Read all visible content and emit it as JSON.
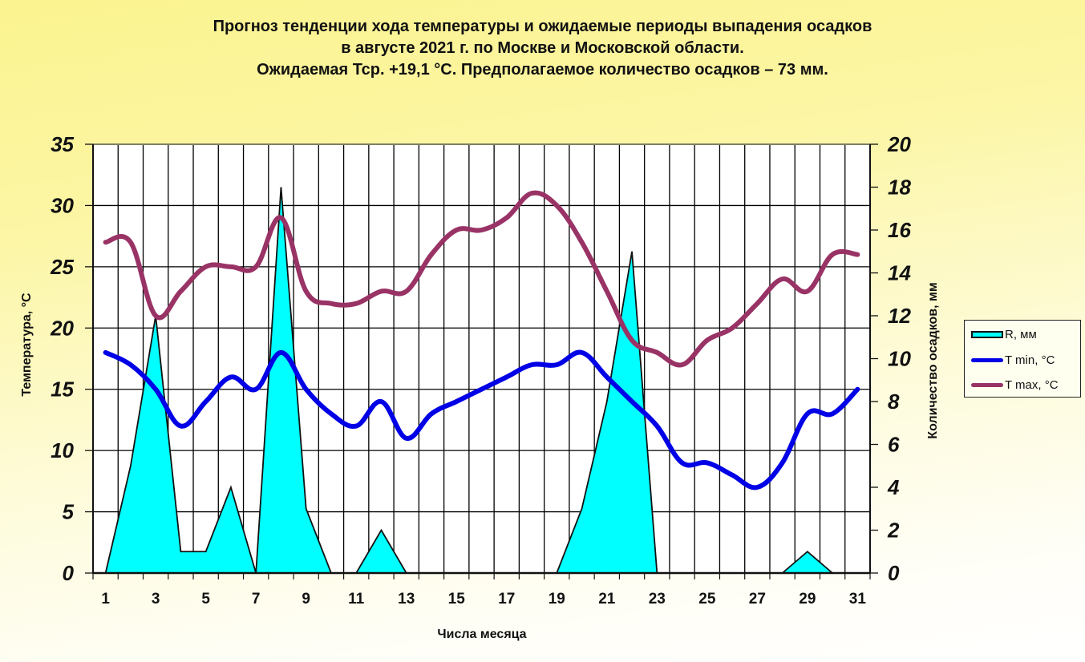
{
  "title": {
    "line1": "Прогноз тенденции хода температуры и ожидаемые периоды выпадения осадков",
    "line2": "в августе 2021 г. по Москве и Московской области.",
    "line3": "Ожидаемая Тср. +19,1 °С. Предполагаемое количество осадков – 73 мм."
  },
  "legend": {
    "items": [
      {
        "label": "R, мм",
        "color": "#00ffff"
      },
      {
        "label": "T min, °C",
        "color": "#0000e6"
      },
      {
        "label": "T max, °C",
        "color": "#993366"
      }
    ]
  },
  "chart_data": {
    "type": "line",
    "title": "Прогноз тенденции хода температуры и ожидаемые периоды выпадения осадков в августе 2021 г. по Москве и Московской области. Ожидаемая Тср. +19,1 °С. Предполагаемое количество осадков – 73 мм.",
    "xlabel": "Числа месяца",
    "ylabel": "Температура, °С",
    "y2label": "Количество осадков, мм",
    "ylim": [
      0,
      35
    ],
    "y2lim": [
      0,
      20
    ],
    "yticks": [
      0,
      5,
      10,
      15,
      20,
      25,
      30,
      35
    ],
    "y2ticks": [
      0,
      2,
      4,
      6,
      8,
      10,
      12,
      14,
      16,
      18,
      20
    ],
    "xtick_labels": [
      "1",
      "3",
      "5",
      "7",
      "9",
      "11",
      "13",
      "15",
      "17",
      "19",
      "21",
      "23",
      "25",
      "27",
      "29",
      "31"
    ],
    "grid": true,
    "legend_position": "right",
    "x": [
      1,
      2,
      3,
      4,
      5,
      6,
      7,
      8,
      9,
      10,
      11,
      12,
      13,
      14,
      15,
      16,
      17,
      18,
      19,
      20,
      21,
      22,
      23,
      24,
      25,
      26,
      27,
      28,
      29,
      30,
      31
    ],
    "series": [
      {
        "name": "R, мм",
        "type": "area",
        "axis": "right",
        "color": "#00ffff",
        "values": [
          0,
          5,
          12,
          1,
          1,
          4,
          0,
          18,
          3,
          0,
          0,
          2,
          0,
          0,
          0,
          0,
          0,
          0,
          0,
          3,
          8,
          15,
          0,
          0,
          0,
          0,
          0,
          0,
          1,
          0,
          0
        ]
      },
      {
        "name": "T min, °C",
        "type": "line",
        "axis": "left",
        "color": "#0000e6",
        "values": [
          18,
          17,
          15,
          12,
          14,
          16,
          15,
          18,
          15,
          13,
          12,
          14,
          11,
          13,
          14,
          15,
          16,
          17,
          17,
          18,
          16,
          14,
          12,
          9,
          9,
          8,
          7,
          9,
          13,
          13,
          15
        ]
      },
      {
        "name": "T max, °C",
        "type": "line",
        "axis": "left",
        "color": "#993366",
        "values": [
          27,
          27,
          21,
          23,
          25,
          25,
          25,
          29,
          23,
          22,
          22,
          23,
          23,
          26,
          28,
          28,
          29,
          31,
          30,
          27,
          23,
          19,
          18,
          17,
          19,
          20,
          22,
          24,
          23,
          26,
          26
        ]
      }
    ]
  }
}
